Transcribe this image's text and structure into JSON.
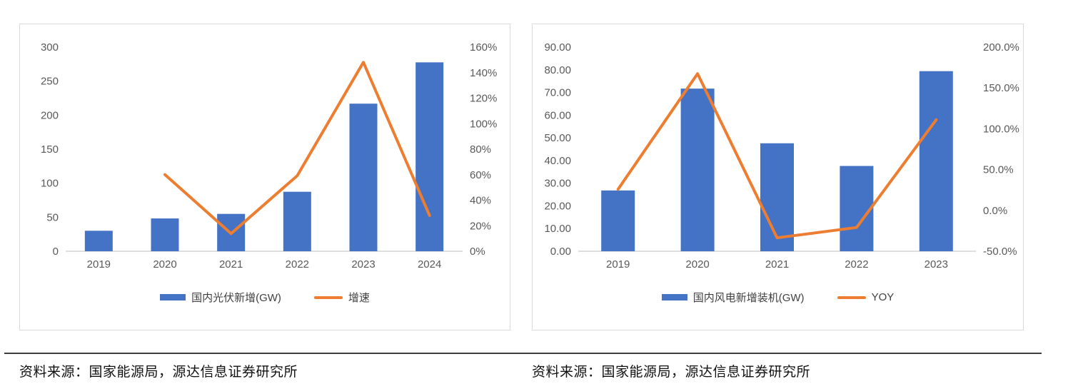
{
  "captions": {
    "left": "资料来源：国家能源局，源达信息证券研究所",
    "right": "资料来源：国家能源局，源达信息证券研究所"
  },
  "colors": {
    "bar": "#4472c4",
    "line": "#ed7d31",
    "axis_line": "#bfbfbf",
    "tick_text": "#595959",
    "panel_border": "#d9d9d9"
  },
  "chart_data": [
    {
      "type": "bar",
      "subtype": "bar+line-combo",
      "title": "",
      "categories": [
        "2019",
        "2020",
        "2021",
        "2022",
        "2023",
        "2024"
      ],
      "series": [
        {
          "name": "国内光伏新增(GW)",
          "type": "bar",
          "axis": "left",
          "values": [
            30.1,
            48.2,
            54.9,
            87.4,
            216.9,
            277.6
          ]
        },
        {
          "name": "增速",
          "type": "line",
          "axis": "right",
          "values": [
            null,
            60.1,
            13.9,
            59.2,
            148.1,
            28.0
          ]
        }
      ],
      "left_axis": {
        "min": 0,
        "max": 300,
        "ticks": [
          "0",
          "50",
          "100",
          "150",
          "200",
          "250",
          "300"
        ]
      },
      "right_axis": {
        "min": 0,
        "max": 160,
        "ticks": [
          "0%",
          "20%",
          "40%",
          "60%",
          "80%",
          "100%",
          "120%",
          "140%",
          "160%"
        ]
      },
      "legend": {
        "bar": "国内光伏新增(GW)",
        "line": "增速",
        "position": "bottom"
      },
      "grid": false
    },
    {
      "type": "bar",
      "subtype": "bar+line-combo",
      "title": "",
      "categories": [
        "2019",
        "2020",
        "2021",
        "2022",
        "2023"
      ],
      "series": [
        {
          "name": "国内风电新增装机(GW)",
          "type": "bar",
          "axis": "left",
          "values": [
            26.8,
            71.7,
            47.6,
            37.6,
            79.4
          ]
        },
        {
          "name": "YOY",
          "type": "line",
          "axis": "right",
          "values": [
            25.9,
            167.5,
            -33.6,
            -20.9,
            110.9
          ]
        }
      ],
      "left_axis": {
        "min": 0,
        "max": 90,
        "ticks": [
          "0.00",
          "10.00",
          "20.00",
          "30.00",
          "40.00",
          "50.00",
          "60.00",
          "70.00",
          "80.00",
          "90.00"
        ]
      },
      "right_axis": {
        "min": -50,
        "max": 200,
        "ticks": [
          "-50.0%",
          "0.0%",
          "50.0%",
          "100.0%",
          "150.0%",
          "200.0%"
        ]
      },
      "legend": {
        "bar": "国内风电新增装机(GW)",
        "line": "YOY",
        "position": "bottom"
      },
      "grid": false
    }
  ]
}
